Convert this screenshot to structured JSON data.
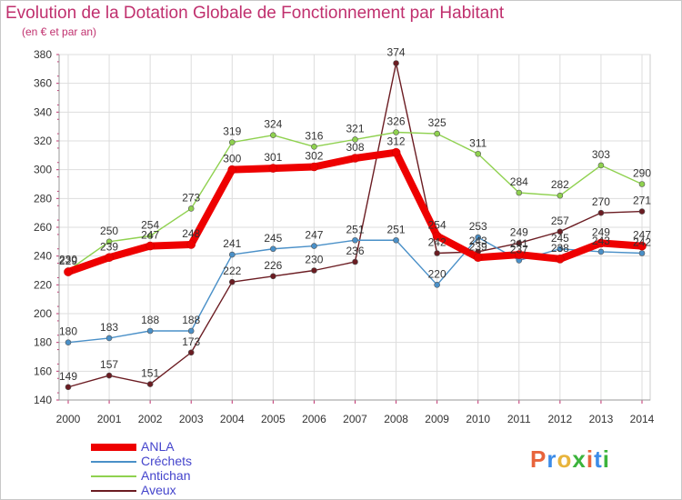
{
  "title": "Evolution de la Dotation Globale de Fonctionnement par Habitant",
  "subtitle": "(en € et par an)",
  "brand": {
    "text": "Proxiti",
    "colors": [
      "#e8643c",
      "#3c8ce8",
      "#e8b43c",
      "#3cb43c",
      "#e8643c",
      "#3c8ce8",
      "#3cb43c"
    ]
  },
  "chart_data": {
    "type": "line",
    "title": "Evolution de la Dotation Globale de Fonctionnement par Habitant",
    "subtitle": "(en € et par an)",
    "xlabel": "",
    "ylabel": "",
    "categories": [
      "2000",
      "2001",
      "2002",
      "2003",
      "2004",
      "2005",
      "2006",
      "2007",
      "2008",
      "2009",
      "2010",
      "2011",
      "2012",
      "2013",
      "2014"
    ],
    "ylim": [
      140,
      380
    ],
    "yticks": [
      140,
      160,
      180,
      200,
      220,
      240,
      260,
      280,
      300,
      320,
      340,
      360,
      380
    ],
    "grid": true,
    "legend_position": "bottom-left",
    "series": [
      {
        "name": "ANLA",
        "color": "#ee0000",
        "values": [
          229,
          239,
          247,
          248,
          300,
          301,
          302,
          308,
          312,
          254,
          239,
          241,
          238,
          249,
          247
        ]
      },
      {
        "name": "Créchets",
        "color": "#4a90c8",
        "values": [
          180,
          183,
          188,
          188,
          241,
          245,
          247,
          251,
          251,
          220,
          253,
          237,
          245,
          243,
          242
        ]
      },
      {
        "name": "Antichan",
        "color": "#8fd14f",
        "values": [
          230,
          250,
          254,
          273,
          319,
          324,
          316,
          321,
          326,
          325,
          311,
          284,
          282,
          303,
          290
        ]
      },
      {
        "name": "Aveux",
        "color": "#6b1c22",
        "values": [
          149,
          157,
          151,
          173,
          222,
          226,
          230,
          236,
          374,
          242,
          243,
          249,
          257,
          270,
          271
        ]
      }
    ]
  }
}
